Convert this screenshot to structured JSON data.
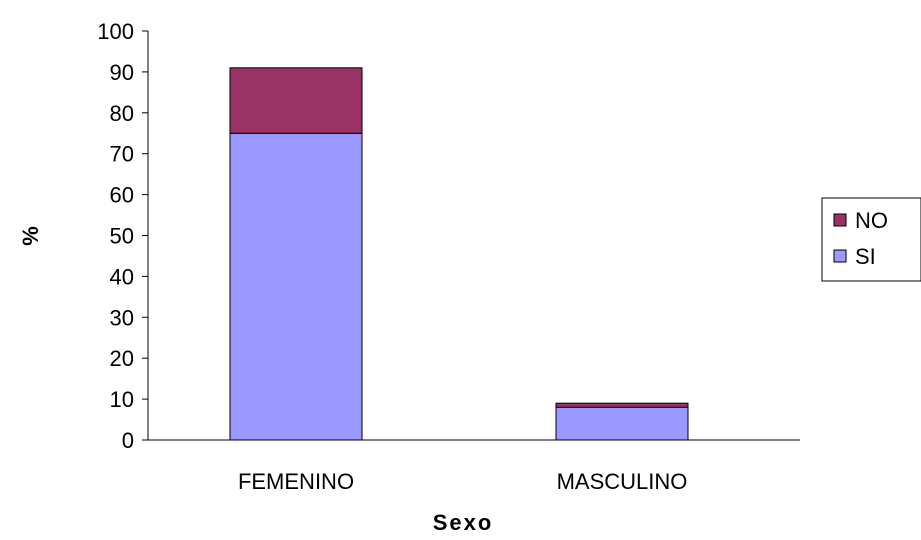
{
  "chart_data": {
    "type": "bar",
    "stacked": true,
    "categories": [
      "FEMENINO",
      "MASCULINO"
    ],
    "series": [
      {
        "name": "SI",
        "values": [
          75,
          8
        ],
        "color": "#9999ff"
      },
      {
        "name": "NO",
        "values": [
          16,
          1
        ],
        "color": "#993366"
      }
    ],
    "title": "",
    "xlabel": "Sexo",
    "ylabel": "%",
    "ylim": [
      0,
      100
    ],
    "yticks": [
      0,
      10,
      20,
      30,
      40,
      50,
      60,
      70,
      80,
      90,
      100
    ],
    "grid": false,
    "legend": {
      "position": "right",
      "order": [
        "NO",
        "SI"
      ]
    }
  }
}
